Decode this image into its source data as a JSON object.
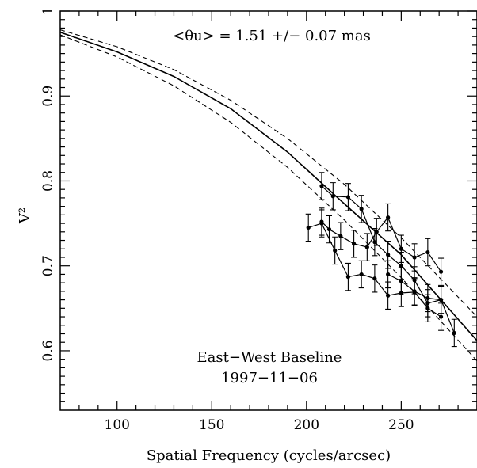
{
  "chart_data": {
    "type": "line",
    "title": "",
    "xlabel": "Spatial Frequency (cycles/arcsec)",
    "ylabel": "V²",
    "xlim": [
      70,
      290
    ],
    "ylim": [
      0.53,
      1.0
    ],
    "grid": false,
    "x_ticks": [
      100,
      150,
      200,
      250
    ],
    "x_tick_labels": [
      "100",
      "150",
      "200",
      "250"
    ],
    "y_ticks": [
      0.6,
      0.7,
      0.8,
      0.9,
      1.0
    ],
    "y_tick_labels": [
      "0.6",
      "0.7",
      "0.8",
      "0.9",
      "1"
    ],
    "annotations": {
      "theta": "<θu> = 1.51 +/− 0.07 mas",
      "baseline": "East−West Baseline",
      "date": "1997−11−06"
    },
    "model_curves": [
      {
        "style": "solid",
        "x": [
          70,
          100,
          130,
          160,
          190,
          220,
          250,
          290
        ],
        "y": [
          0.975,
          0.952,
          0.923,
          0.885,
          0.834,
          0.773,
          0.713,
          0.612
        ]
      },
      {
        "style": "dashed",
        "x": [
          70,
          100,
          130,
          160,
          190,
          220,
          250,
          290
        ],
        "y": [
          0.978,
          0.958,
          0.931,
          0.895,
          0.85,
          0.796,
          0.733,
          0.64
        ]
      },
      {
        "style": "dashed",
        "x": [
          70,
          100,
          130,
          160,
          190,
          220,
          250,
          290
        ],
        "y": [
          0.972,
          0.946,
          0.912,
          0.869,
          0.816,
          0.754,
          0.686,
          0.588
        ]
      }
    ],
    "series": [
      {
        "x": [
          208,
          214,
          222,
          229,
          236,
          243,
          250,
          257,
          264,
          271
        ],
        "y": [
          0.794,
          0.782,
          0.781,
          0.767,
          0.728,
          0.713,
          0.7,
          0.683,
          0.656,
          0.66
        ],
        "err": [
          0.016,
          0.016,
          0.016,
          0.016,
          0.016,
          0.016,
          0.016,
          0.016,
          0.016,
          0.016
        ]
      },
      {
        "x": [
          201,
          208,
          215,
          222,
          229,
          236,
          243,
          250,
          257,
          264,
          271
        ],
        "y": [
          0.745,
          0.75,
          0.718,
          0.687,
          0.69,
          0.685,
          0.665,
          0.668,
          0.669,
          0.65,
          0.64
        ],
        "err": [
          0.016,
          0.016,
          0.016,
          0.016,
          0.016,
          0.016,
          0.016,
          0.016,
          0.016,
          0.016,
          0.016
        ]
      },
      {
        "x": [
          208,
          212,
          218,
          225,
          232,
          237,
          243,
          250,
          257,
          264,
          271
        ],
        "y": [
          0.752,
          0.743,
          0.735,
          0.726,
          0.722,
          0.74,
          0.757,
          0.72,
          0.71,
          0.716,
          0.693
        ],
        "err": [
          0.016,
          0.016,
          0.016,
          0.016,
          0.016,
          0.016,
          0.016,
          0.016,
          0.016,
          0.016,
          0.016
        ]
      },
      {
        "x": [
          243,
          250,
          257,
          264,
          271,
          278
        ],
        "y": [
          0.69,
          0.682,
          0.67,
          0.662,
          0.66,
          0.621
        ],
        "err": [
          0.016,
          0.016,
          0.016,
          0.016,
          0.016,
          0.016
        ]
      }
    ]
  }
}
